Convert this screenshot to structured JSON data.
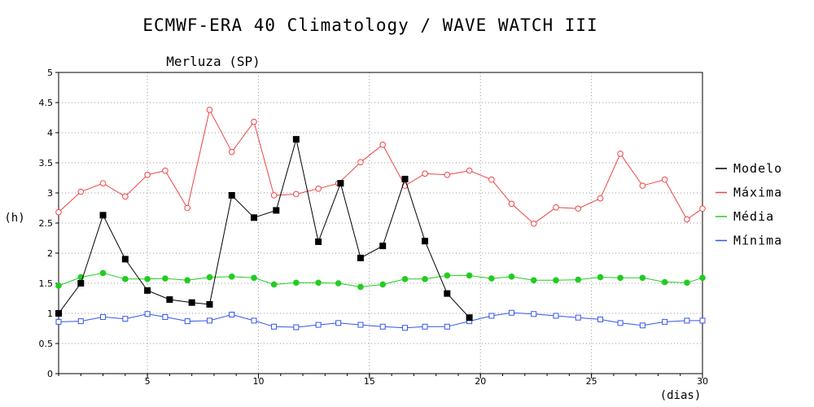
{
  "title": "ECMWF-ERA 40 Climatology / WAVE WATCH III",
  "subtitle": "Merluza (SP)",
  "chart_data": {
    "type": "line",
    "xlabel": "(dias)",
    "ylabel": "(h)",
    "xlim": [
      1,
      30
    ],
    "ylim": [
      0,
      5
    ],
    "xticks": [
      5,
      10,
      15,
      20,
      25,
      30
    ],
    "yticks": [
      0,
      0.5,
      1,
      1.5,
      2,
      2.5,
      3,
      3.5,
      4,
      4.5,
      5
    ],
    "ytick_labels": [
      "0",
      "0.5",
      "1",
      "1.5",
      "2",
      "2.5",
      "3",
      "3.5",
      "4",
      "4.5",
      "5"
    ],
    "grid": true,
    "legend_position": "right",
    "series": [
      {
        "name": "Modelo",
        "color": "#000000",
        "marker": "filled-square",
        "x": [
          1,
          2,
          3,
          4,
          5,
          6,
          7,
          7.8,
          8.8,
          9.8,
          10.8,
          11.7,
          12.7,
          13.7,
          14.6,
          15.6,
          16.6,
          17.5,
          18.5,
          19.5
        ],
        "y": [
          1.0,
          1.5,
          2.63,
          1.9,
          1.38,
          1.23,
          1.18,
          1.15,
          2.96,
          2.59,
          2.71,
          3.89,
          2.19,
          3.16,
          1.92,
          2.12,
          3.23,
          2.2,
          1.33,
          0.93
        ]
      },
      {
        "name": "Máxima",
        "color": "#ee4444",
        "marker": "open-circle",
        "x": [
          1,
          2,
          3,
          4,
          5,
          5.8,
          6.8,
          7.8,
          8.8,
          9.8,
          10.7,
          11.7,
          12.7,
          13.6,
          14.6,
          15.6,
          16.6,
          17.5,
          18.5,
          19.5,
          20.5,
          21.4,
          22.4,
          23.4,
          24.4,
          25.4,
          26.3,
          27.3,
          28.3,
          29.3,
          30
        ],
        "y": [
          2.68,
          3.02,
          3.16,
          2.94,
          3.3,
          3.37,
          2.75,
          4.38,
          3.68,
          4.18,
          2.96,
          2.98,
          3.07,
          3.16,
          3.51,
          3.8,
          3.12,
          3.32,
          3.3,
          3.37,
          3.22,
          2.82,
          2.49,
          2.76,
          2.74,
          2.91,
          3.65,
          3.12,
          3.22,
          2.56,
          2.74
        ]
      },
      {
        "name": "Média",
        "color": "#22cc22",
        "marker": "filled-circle",
        "x": [
          1,
          2,
          3,
          4,
          5,
          5.8,
          6.8,
          7.8,
          8.8,
          9.8,
          10.7,
          11.7,
          12.7,
          13.6,
          14.6,
          15.6,
          16.6,
          17.5,
          18.5,
          19.5,
          20.5,
          21.4,
          22.4,
          23.4,
          24.4,
          25.4,
          26.3,
          27.3,
          28.3,
          29.3,
          30
        ],
        "y": [
          1.46,
          1.6,
          1.67,
          1.57,
          1.57,
          1.58,
          1.55,
          1.6,
          1.61,
          1.59,
          1.48,
          1.51,
          1.51,
          1.5,
          1.44,
          1.48,
          1.57,
          1.57,
          1.63,
          1.63,
          1.58,
          1.61,
          1.55,
          1.55,
          1.56,
          1.6,
          1.59,
          1.59,
          1.52,
          1.51,
          1.59
        ]
      },
      {
        "name": "Mínima",
        "color": "#3355ee",
        "marker": "open-square",
        "x": [
          1,
          2,
          3,
          4,
          5,
          5.8,
          6.8,
          7.8,
          8.8,
          9.8,
          10.7,
          11.7,
          12.7,
          13.6,
          14.6,
          15.6,
          16.6,
          17.5,
          18.5,
          19.5,
          20.5,
          21.4,
          22.4,
          23.4,
          24.4,
          25.4,
          26.3,
          27.3,
          28.3,
          29.3,
          30
        ],
        "y": [
          0.86,
          0.87,
          0.94,
          0.91,
          0.99,
          0.94,
          0.87,
          0.88,
          0.98,
          0.88,
          0.78,
          0.77,
          0.81,
          0.84,
          0.81,
          0.78,
          0.76,
          0.78,
          0.78,
          0.87,
          0.96,
          1.01,
          0.99,
          0.96,
          0.93,
          0.9,
          0.84,
          0.8,
          0.86,
          0.88,
          0.88
        ]
      }
    ]
  }
}
